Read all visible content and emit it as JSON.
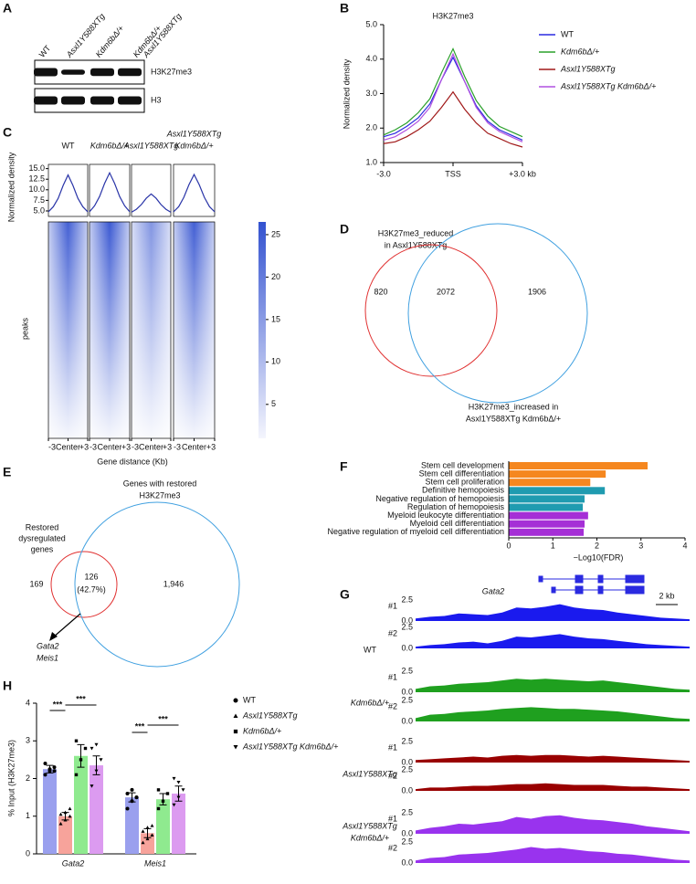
{
  "panels": [
    "A",
    "B",
    "C",
    "D",
    "E",
    "F",
    "G",
    "H"
  ],
  "blot": {
    "lanes": [
      [
        "WT"
      ],
      [
        "Asxl1Y588XTg"
      ],
      [
        "Kdm6bΔ/+"
      ],
      [
        "Asxl1Y588XTg",
        "Kdm6bΔ/+"
      ]
    ],
    "bands": [
      "H3K27me3",
      "H3"
    ]
  },
  "profile": {
    "type": "line",
    "title": "H3K27me3",
    "ylabel": "Normalized density",
    "x": [
      -3,
      -2.5,
      -2,
      -1.5,
      -1,
      -0.5,
      0,
      0.5,
      1,
      1.5,
      2,
      2.5,
      3
    ],
    "xlim": [
      -3,
      3
    ],
    "xticks": [
      {
        "value": -3,
        "label": "-3.0"
      },
      {
        "value": 0,
        "label": "TSS"
      },
      {
        "value": 3,
        "label": "+3.0 kb"
      }
    ],
    "ylim": [
      1,
      5
    ],
    "yticks": [
      {
        "value": 1,
        "label": "1.0"
      },
      {
        "value": 2,
        "label": "2.0"
      },
      {
        "value": 3,
        "label": "3.0"
      },
      {
        "value": 4,
        "label": "4.0"
      },
      {
        "value": 5,
        "label": "5.0"
      }
    ],
    "series": [
      {
        "name": "WT",
        "color": "#2a2ae0",
        "values": [
          1.75,
          1.85,
          2.05,
          2.3,
          2.7,
          3.4,
          4.05,
          3.35,
          2.65,
          2.2,
          1.95,
          1.8,
          1.65
        ]
      },
      {
        "name": "Kdm6bΔ/+",
        "color": "#2aa02a",
        "values": [
          1.8,
          1.95,
          2.15,
          2.45,
          2.85,
          3.6,
          4.3,
          3.5,
          2.8,
          2.35,
          2.05,
          1.9,
          1.75
        ]
      },
      {
        "name": "Asxl1Y588XTg",
        "color": "#a01818",
        "values": [
          1.55,
          1.6,
          1.75,
          1.95,
          2.2,
          2.6,
          3.05,
          2.55,
          2.15,
          1.85,
          1.7,
          1.55,
          1.45
        ]
      },
      {
        "name": "Asxl1Y588XTg Kdm6bΔ/+",
        "color": "#b050e0",
        "values": [
          1.65,
          1.75,
          1.95,
          2.2,
          2.6,
          3.4,
          4.15,
          3.35,
          2.6,
          2.15,
          1.9,
          1.75,
          1.6
        ]
      }
    ]
  },
  "heatmap": {
    "type": "heatmap",
    "ylabel": "Normalized density",
    "rowlabel": "peaks",
    "xlabel": "Gene distance (Kb)",
    "color": "#3352d0",
    "x": [
      -3,
      -2.25,
      -1.5,
      -0.75,
      0,
      0.75,
      1.5,
      2.25,
      3
    ],
    "xticks": [
      {
        "value": -3,
        "label": "-3"
      },
      {
        "value": 0,
        "label": "Center"
      },
      {
        "value": 3,
        "label": "+3"
      }
    ],
    "ylim": [
      3.7,
      16
    ],
    "yticks": [
      {
        "value": 5,
        "label": "5.0"
      },
      {
        "value": 7.5,
        "label": "7.5"
      },
      {
        "value": 10,
        "label": "10.0"
      },
      {
        "value": 12.5,
        "label": "12.5"
      },
      {
        "value": 15,
        "label": "15.0"
      }
    ],
    "colorbar": {
      "lim": [
        1,
        26.5
      ],
      "ticks": [
        5,
        10,
        15,
        20,
        25
      ]
    },
    "groups": [
      {
        "name": [
          "WT"
        ],
        "values": [
          4.8,
          6,
          8,
          11,
          13.5,
          11,
          8,
          6,
          4.8
        ]
      },
      {
        "name": [
          "Kdm6bΔ/+"
        ],
        "values": [
          4.8,
          6.2,
          8.4,
          11.5,
          14,
          11.5,
          8.4,
          6.2,
          4.8
        ]
      },
      {
        "name": [
          "Asxl1Y588XTg"
        ],
        "values": [
          4.7,
          5.4,
          6.5,
          8,
          9,
          8,
          6.5,
          5.4,
          4.7
        ]
      },
      {
        "name": [
          "Asxl1Y588XTg",
          "Kdm6bΔ/+"
        ],
        "values": [
          4.8,
          6,
          8.2,
          11.2,
          13.6,
          11.2,
          8.2,
          6,
          4.8
        ]
      }
    ]
  },
  "venn1": {
    "top": [
      "H3K27me3_reduced",
      "in Asxl1Y588XTg"
    ],
    "bottom": [
      "H3K27me3_increased in",
      "Asxl1Y588XTg Kdm6bΔ/+"
    ],
    "values": [
      820,
      2072,
      1906
    ]
  },
  "venn2": {
    "big": [
      "Genes with restored",
      "H3K27me3"
    ],
    "small": [
      "Restored",
      "dysregulated",
      "genes"
    ],
    "values": [
      169,
      126,
      1946
    ],
    "value_labels": [
      "169",
      "126",
      "1,946"
    ],
    "percent": {
      "value": 42.7,
      "label": "(42.7%)"
    },
    "genes": [
      "Gata2",
      "Meis1"
    ]
  },
  "go": {
    "type": "bar",
    "orientation": "horizontal",
    "categories": [
      "Stem cell development",
      "Stem cell differentiation",
      "Stem cell proliferation",
      "Definitive hemopoiesis",
      "Negative regulation of hemopoiesis",
      "Regulation of hemopoiesis",
      "Myeloid leukocyte differentiation",
      "Myeloid cell differentiation",
      "Negative regulation of myeloid cell differentiation"
    ],
    "values": [
      3.15,
      2.2,
      1.85,
      2.18,
      1.72,
      1.68,
      1.8,
      1.72,
      1.7
    ],
    "colors": [
      "#f5871f",
      "#f5871f",
      "#f5871f",
      "#1f9bb0",
      "#1f9bb0",
      "#1f9bb0",
      "#a52fd6",
      "#a52fd6",
      "#a52fd6"
    ],
    "xlim": [
      0,
      4
    ],
    "xticks": [
      0,
      1,
      2,
      3,
      4
    ],
    "xlabel": "−Log10(FDR)"
  },
  "tracks": {
    "gene": "Gata2",
    "scale": "2 kb",
    "ylim": [
      0,
      2.5
    ],
    "yticks": [
      {
        "value": 2.5,
        "label": "2.5"
      },
      {
        "value": 0,
        "label": "0.0"
      }
    ],
    "groups": [
      {
        "name": [
          "WT"
        ],
        "color": "#1a1aee",
        "replicates": [
          {
            "name": "#1",
            "values": [
              0.3,
              0.5,
              0.6,
              0.9,
              0.8,
              0.7,
              1.0,
              1.6,
              1.5,
              1.7,
              2.0,
              1.6,
              1.4,
              1.3,
              1.0,
              0.8,
              0.6,
              0.4,
              0.3,
              0.2
            ]
          },
          {
            "name": "#2",
            "values": [
              0.2,
              0.4,
              0.5,
              0.7,
              0.8,
              0.6,
              0.9,
              1.4,
              1.3,
              1.5,
              1.7,
              1.4,
              1.2,
              1.1,
              0.9,
              0.7,
              0.5,
              0.4,
              0.3,
              0.2
            ]
          }
        ]
      },
      {
        "name": [
          "Kdm6bΔ/+"
        ],
        "color": "#1fa01f",
        "replicates": [
          {
            "name": "#1",
            "values": [
              0.4,
              0.7,
              0.8,
              1.0,
              1.1,
              1.2,
              1.4,
              1.6,
              1.5,
              1.6,
              1.5,
              1.4,
              1.3,
              1.4,
              1.2,
              1.0,
              0.8,
              0.6,
              0.4,
              0.3
            ]
          },
          {
            "name": "#2",
            "values": [
              0.4,
              0.8,
              0.9,
              1.1,
              1.2,
              1.3,
              1.5,
              1.6,
              1.7,
              1.6,
              1.5,
              1.5,
              1.4,
              1.3,
              1.2,
              1.0,
              0.8,
              0.6,
              0.4,
              0.3
            ]
          }
        ]
      },
      {
        "name": [
          "Asxl1Y588XTg"
        ],
        "color": "#990000",
        "replicates": [
          {
            "name": "#1",
            "values": [
              0.3,
              0.4,
              0.5,
              0.6,
              0.7,
              0.6,
              0.8,
              0.9,
              0.8,
              0.9,
              0.9,
              0.8,
              0.7,
              0.8,
              0.7,
              0.6,
              0.5,
              0.4,
              0.3,
              0.2
            ]
          },
          {
            "name": "#2",
            "values": [
              0.2,
              0.4,
              0.4,
              0.5,
              0.6,
              0.6,
              0.7,
              0.8,
              0.8,
              0.9,
              0.8,
              0.7,
              0.7,
              0.7,
              0.6,
              0.5,
              0.5,
              0.4,
              0.3,
              0.2
            ]
          }
        ]
      },
      {
        "name": [
          "Asxl1Y588XTg",
          "Kdm6bΔ/+"
        ],
        "color": "#9933ee",
        "replicates": [
          {
            "name": "#1",
            "values": [
              0.4,
              0.7,
              0.9,
              1.2,
              1.1,
              1.3,
              1.5,
              2.0,
              1.8,
              2.1,
              2.2,
              1.9,
              1.7,
              1.6,
              1.4,
              1.2,
              0.9,
              0.7,
              0.5,
              0.3
            ]
          },
          {
            "name": "#2",
            "values": [
              0.3,
              0.6,
              0.7,
              1.0,
              1.1,
              1.2,
              1.4,
              1.6,
              1.9,
              1.7,
              1.8,
              1.6,
              1.4,
              1.3,
              1.1,
              1.0,
              0.8,
              0.6,
              0.4,
              0.3
            ]
          }
        ]
      }
    ]
  },
  "chip": {
    "type": "bar",
    "categories": [
      "Gata2",
      "Meis1"
    ],
    "ylabel": "% Input (H3K27me3)",
    "ylim": [
      0,
      4
    ],
    "yticks": [
      0,
      1,
      2,
      3,
      4
    ],
    "series": [
      {
        "name": "WT",
        "color": "#9aa0ee",
        "marker": "circle",
        "values": [
          2.25,
          1.5
        ],
        "errors": [
          0.1,
          0.12
        ],
        "points": [
          [
            2.1,
            2.2,
            2.3,
            2.4,
            2.25,
            2.2
          ],
          [
            1.2,
            1.4,
            1.5,
            1.6,
            1.7,
            1.5
          ]
        ]
      },
      {
        "name": "Asxl1Y588XTg",
        "color": "#f7a39b",
        "marker": "triangle-up",
        "values": [
          1.0,
          0.55
        ],
        "errors": [
          0.1,
          0.12
        ],
        "points": [
          [
            0.8,
            0.9,
            1.0,
            1.05,
            1.1,
            1.2
          ],
          [
            0.3,
            0.4,
            0.5,
            0.6,
            0.7,
            0.75
          ]
        ]
      },
      {
        "name": "Kdm6bΔ/+",
        "color": "#8fea8f",
        "marker": "square",
        "values": [
          2.6,
          1.45
        ],
        "errors": [
          0.3,
          0.15
        ],
        "points": [
          [
            2.1,
            2.5,
            2.8,
            3.0
          ],
          [
            1.2,
            1.4,
            1.6,
            1.7
          ]
        ]
      },
      {
        "name": "Asxl1Y588XTg Kdm6bΔ/+",
        "color": "#dc9bf0",
        "marker": "triangle-down",
        "values": [
          2.35,
          1.6
        ],
        "errors": [
          0.25,
          0.2
        ],
        "points": [
          [
            1.8,
            2.2,
            2.5,
            2.8,
            2.9
          ],
          [
            1.3,
            1.5,
            1.7,
            2.0,
            1.9
          ]
        ]
      }
    ],
    "significance": [
      "***",
      "***",
      "***",
      "***"
    ]
  }
}
